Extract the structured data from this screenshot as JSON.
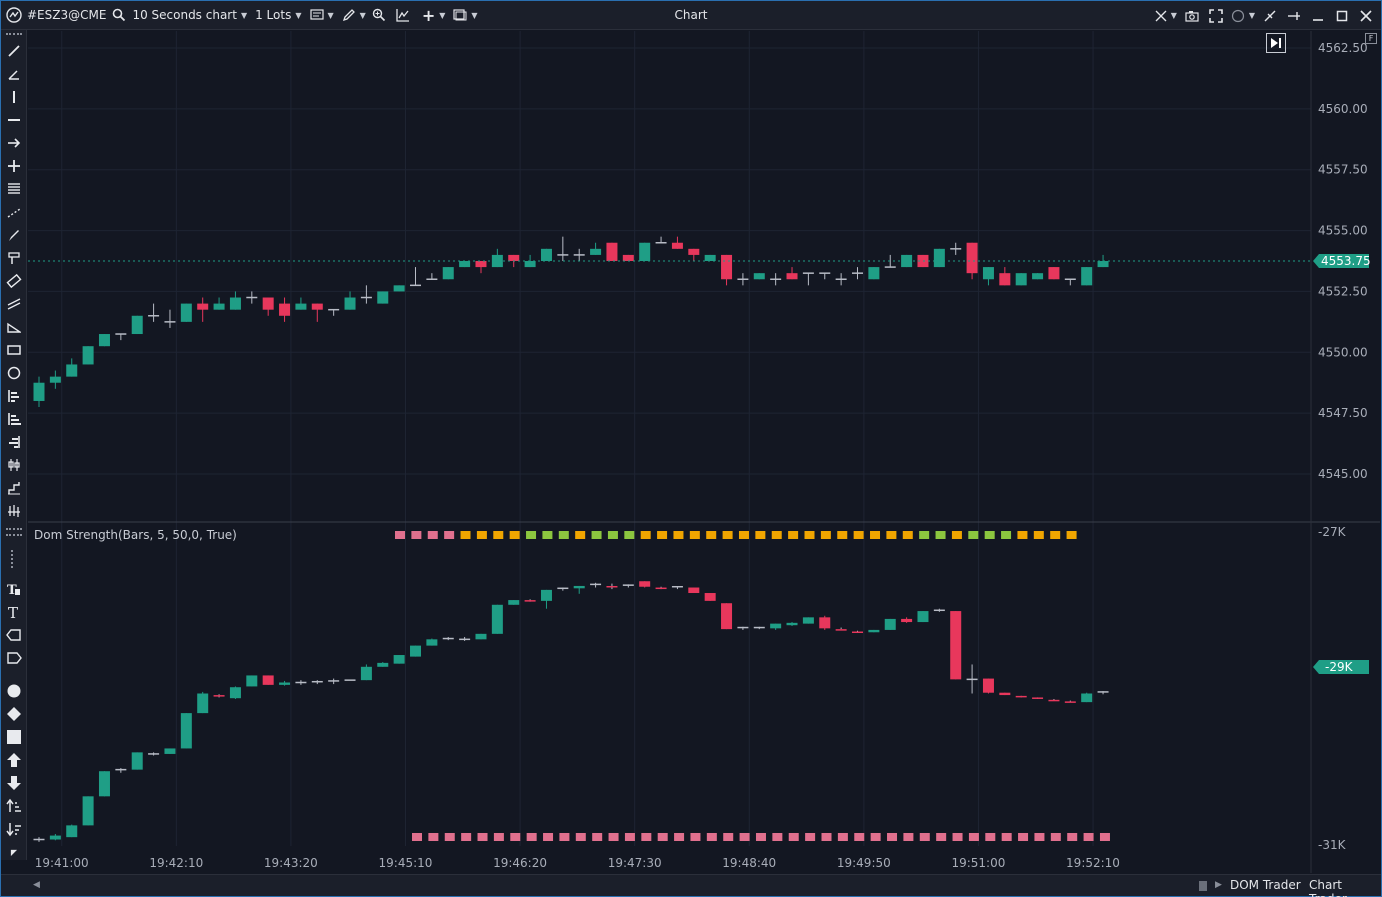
{
  "toolbar": {
    "symbol": "#ESZ3@CME",
    "interval": "10 Seconds chart",
    "quantity": "1 Lots"
  },
  "window": {
    "title": "Chart"
  },
  "indicator": {
    "title": "Dom Strength(Bars, 5, 50,0, True)"
  },
  "bottom": {
    "tabs": [
      "DOM Trader",
      "Chart Trader"
    ]
  },
  "colors": {
    "up": "#1f9e86",
    "down": "#e8375c",
    "background": "#131722",
    "grid": "#1f2533",
    "square_orange": "#f0a500",
    "square_green": "#8cc63f",
    "square_pink": "#e0708e"
  },
  "chart_data": [
    {
      "type": "candlestick",
      "title": "",
      "x_tick_labels": [
        "19:41:00",
        "19:42:10",
        "19:43:20",
        "19:45:10",
        "19:46:20",
        "19:47:30",
        "19:48:40",
        "19:49:50",
        "19:51:00",
        "19:52:10"
      ],
      "y_tick_labels": [
        "4562.50",
        "4560.00",
        "4557.50",
        "4555.00",
        "4552.50",
        "4550.00",
        "4547.50",
        "4545.00"
      ],
      "ylim": [
        4543.5,
        4563.0
      ],
      "current_price": "4553.75",
      "candles": [
        [
          4548.0,
          4549.0,
          4547.75,
          4548.75
        ],
        [
          4548.75,
          4549.25,
          4548.5,
          4549.0
        ],
        [
          4549.0,
          4549.75,
          4549.0,
          4549.5
        ],
        [
          4549.5,
          4550.25,
          4549.5,
          4550.25
        ],
        [
          4550.25,
          4550.75,
          4550.25,
          4550.75
        ],
        [
          4550.75,
          4550.75,
          4550.5,
          4550.75
        ],
        [
          4550.75,
          4551.5,
          4550.75,
          4551.5
        ],
        [
          4551.5,
          4552.0,
          4551.25,
          4551.5
        ],
        [
          4551.25,
          4551.75,
          4551.0,
          4551.25
        ],
        [
          4551.25,
          4552.0,
          4551.25,
          4552.0
        ],
        [
          4552.0,
          4552.25,
          4551.25,
          4551.75
        ],
        [
          4551.75,
          4552.25,
          4551.75,
          4552.0
        ],
        [
          4551.75,
          4552.5,
          4551.75,
          4552.25
        ],
        [
          4552.25,
          4552.5,
          4552.0,
          4552.25
        ],
        [
          4552.25,
          4552.25,
          4551.5,
          4551.75
        ],
        [
          4552.0,
          4552.25,
          4551.25,
          4551.5
        ],
        [
          4551.75,
          4552.25,
          4551.75,
          4552.0
        ],
        [
          4552.0,
          4552.0,
          4551.25,
          4551.75
        ],
        [
          4551.75,
          4551.75,
          4551.5,
          4551.75
        ],
        [
          4551.75,
          4552.5,
          4551.75,
          4552.25
        ],
        [
          4552.25,
          4552.75,
          4552.0,
          4552.25
        ],
        [
          4552.0,
          4552.5,
          4552.0,
          4552.5
        ],
        [
          4552.5,
          4552.75,
          4552.5,
          4552.75
        ],
        [
          4552.75,
          4553.5,
          4552.75,
          4552.75
        ],
        [
          4553.0,
          4553.25,
          4553.0,
          4553.0
        ],
        [
          4553.0,
          4553.5,
          4553.0,
          4553.5
        ],
        [
          4553.5,
          4553.75,
          4553.5,
          4553.75
        ],
        [
          4553.75,
          4553.75,
          4553.25,
          4553.5
        ],
        [
          4553.5,
          4554.25,
          4553.5,
          4554.0
        ],
        [
          4554.0,
          4554.0,
          4553.5,
          4553.75
        ],
        [
          4553.5,
          4554.0,
          4553.5,
          4553.75
        ],
        [
          4553.75,
          4554.25,
          4553.75,
          4554.25
        ],
        [
          4554.0,
          4554.75,
          4553.75,
          4554.0
        ],
        [
          4554.0,
          4554.25,
          4553.75,
          4554.0
        ],
        [
          4554.0,
          4554.5,
          4554.0,
          4554.25
        ],
        [
          4554.5,
          4554.5,
          4553.75,
          4553.75
        ],
        [
          4554.0,
          4554.0,
          4553.75,
          4553.75
        ],
        [
          4553.75,
          4554.5,
          4553.75,
          4554.5
        ],
        [
          4554.5,
          4554.75,
          4554.5,
          4554.5
        ],
        [
          4554.5,
          4554.75,
          4554.25,
          4554.25
        ],
        [
          4554.25,
          4554.25,
          4553.75,
          4554.0
        ],
        [
          4553.75,
          4554.0,
          4553.75,
          4554.0
        ],
        [
          4554.0,
          4554.0,
          4552.75,
          4553.0
        ],
        [
          4553.0,
          4553.25,
          4552.75,
          4553.0
        ],
        [
          4553.0,
          4553.25,
          4553.0,
          4553.25
        ],
        [
          4553.0,
          4553.25,
          4552.75,
          4553.0
        ],
        [
          4553.25,
          4553.5,
          4553.0,
          4553.0
        ],
        [
          4553.25,
          4553.25,
          4552.75,
          4553.25
        ],
        [
          4553.25,
          4553.25,
          4553.0,
          4553.25
        ],
        [
          4553.0,
          4553.25,
          4552.75,
          4553.0
        ],
        [
          4553.25,
          4553.5,
          4553.0,
          4553.25
        ],
        [
          4553.0,
          4553.5,
          4553.0,
          4553.5
        ],
        [
          4553.5,
          4554.0,
          4553.5,
          4553.5
        ],
        [
          4553.5,
          4554.0,
          4553.5,
          4554.0
        ],
        [
          4554.0,
          4554.0,
          4553.5,
          4553.5
        ],
        [
          4553.5,
          4554.25,
          4553.5,
          4554.25
        ],
        [
          4554.25,
          4554.5,
          4554.0,
          4554.25
        ],
        [
          4554.5,
          4554.5,
          4553.0,
          4553.25
        ],
        [
          4553.0,
          4553.5,
          4552.75,
          4553.5
        ],
        [
          4553.25,
          4553.5,
          4552.75,
          4552.75
        ],
        [
          4552.75,
          4553.25,
          4552.75,
          4553.25
        ],
        [
          4553.0,
          4553.25,
          4553.0,
          4553.25
        ],
        [
          4553.5,
          4553.5,
          4553.0,
          4553.0
        ],
        [
          4553.0,
          4553.0,
          4552.75,
          4553.0
        ],
        [
          4552.75,
          4553.5,
          4552.75,
          4553.5
        ],
        [
          4553.5,
          4554.0,
          4553.5,
          4553.75
        ]
      ]
    },
    {
      "type": "candlestick",
      "title": "Dom Strength(Bars, 5, 50,0, True)",
      "y_tick_labels": [
        "-27K",
        "-31K"
      ],
      "ylim": [
        -31000,
        -27000
      ],
      "current_value": "-29K",
      "candles": [
        [
          -30930,
          -30900,
          -30960,
          -30930
        ],
        [
          -30930,
          -30860,
          -30940,
          -30880
        ],
        [
          -30900,
          -30740,
          -30900,
          -30750
        ],
        [
          -30750,
          -30380,
          -30750,
          -30380
        ],
        [
          -30380,
          -30060,
          -30380,
          -30060
        ],
        [
          -30060,
          -30020,
          -30080,
          -30040
        ],
        [
          -30040,
          -29820,
          -30040,
          -29820
        ],
        [
          -29840,
          -29820,
          -29860,
          -29840
        ],
        [
          -29840,
          -29770,
          -29840,
          -29770
        ],
        [
          -29770,
          -29320,
          -29770,
          -29320
        ],
        [
          -29320,
          -29050,
          -29320,
          -29070
        ],
        [
          -29090,
          -29080,
          -29120,
          -29100
        ],
        [
          -29130,
          -28980,
          -29140,
          -28990
        ],
        [
          -28980,
          -28840,
          -28980,
          -28840
        ],
        [
          -28840,
          -28840,
          -28960,
          -28960
        ],
        [
          -28960,
          -28910,
          -28970,
          -28930
        ],
        [
          -28930,
          -28900,
          -28960,
          -28930
        ],
        [
          -28930,
          -28900,
          -28950,
          -28920
        ],
        [
          -28930,
          -28880,
          -28950,
          -28910
        ],
        [
          -28900,
          -28910,
          -28910,
          -28900
        ],
        [
          -28900,
          -28700,
          -28900,
          -28730
        ],
        [
          -28730,
          -28670,
          -28730,
          -28680
        ],
        [
          -28690,
          -28580,
          -28690,
          -28580
        ],
        [
          -28600,
          -28460,
          -28600,
          -28460
        ],
        [
          -28460,
          -28370,
          -28460,
          -28380
        ],
        [
          -28370,
          -28350,
          -28390,
          -28370
        ],
        [
          -28380,
          -28350,
          -28400,
          -28380
        ],
        [
          -28380,
          -28310,
          -28380,
          -28310
        ],
        [
          -28310,
          -27940,
          -28310,
          -27940
        ],
        [
          -27940,
          -27880,
          -27940,
          -27880
        ],
        [
          -27880,
          -27870,
          -27900,
          -27890
        ],
        [
          -27890,
          -27750,
          -27990,
          -27750
        ],
        [
          -27750,
          -27720,
          -27760,
          -27730
        ],
        [
          -27730,
          -27700,
          -27800,
          -27700
        ],
        [
          -27700,
          -27660,
          -27720,
          -27680
        ],
        [
          -27690,
          -27670,
          -27740,
          -27710
        ],
        [
          -27700,
          -27680,
          -27720,
          -27690
        ],
        [
          -27640,
          -27640,
          -27720,
          -27710
        ],
        [
          -27710,
          -27710,
          -27740,
          -27730
        ],
        [
          -27730,
          -27710,
          -27740,
          -27710
        ],
        [
          -27720,
          -27720,
          -27790,
          -27790
        ],
        [
          -27790,
          -27790,
          -27890,
          -27890
        ],
        [
          -27920,
          -27920,
          -28250,
          -28250
        ],
        [
          -28240,
          -28220,
          -28260,
          -28230
        ],
        [
          -28240,
          -28220,
          -28250,
          -28230
        ],
        [
          -28240,
          -28180,
          -28260,
          -28180
        ],
        [
          -28200,
          -28160,
          -28210,
          -28170
        ],
        [
          -28180,
          -28100,
          -28180,
          -28100
        ],
        [
          -28100,
          -28080,
          -28260,
          -28240
        ],
        [
          -28240,
          -28230,
          -28250,
          -28260
        ],
        [
          -28270,
          -28270,
          -28290,
          -28290
        ],
        [
          -28290,
          -28260,
          -28290,
          -28260
        ],
        [
          -28260,
          -28120,
          -28260,
          -28120
        ],
        [
          -28120,
          -28100,
          -28170,
          -28160
        ],
        [
          -28160,
          -28020,
          -28160,
          -28020
        ],
        [
          -28020,
          -27990,
          -28030,
          -28010
        ],
        [
          -28020,
          -28020,
          -28890,
          -28890
        ],
        [
          -28890,
          -28700,
          -29070,
          -28890
        ],
        [
          -28880,
          -28880,
          -29070,
          -29060
        ],
        [
          -29060,
          -29060,
          -29090,
          -29090
        ],
        [
          -29100,
          -29100,
          -29120,
          -29110
        ],
        [
          -29120,
          -29120,
          -29140,
          -29130
        ],
        [
          -29140,
          -29140,
          -29160,
          -29160
        ],
        [
          -29160,
          -29160,
          -29180,
          -29180
        ],
        [
          -29180,
          -29060,
          -29180,
          -29070
        ],
        [
          -29070,
          -29040,
          -29080,
          -29050
        ]
      ],
      "top_squares": [
        "p",
        "p",
        "p",
        "p",
        "o",
        "o",
        "o",
        "o",
        "g",
        "g",
        "g",
        "o",
        "g",
        "g",
        "g",
        "o",
        "o",
        "o",
        "o",
        "o",
        "o",
        "o",
        "o",
        "o",
        "o",
        "o",
        "o",
        "o",
        "o",
        "o",
        "o",
        "o",
        "g",
        "g",
        "o",
        "g",
        "g",
        "g",
        "o",
        "o",
        "o",
        "o"
      ],
      "bottom_squares_count": 43
    }
  ]
}
